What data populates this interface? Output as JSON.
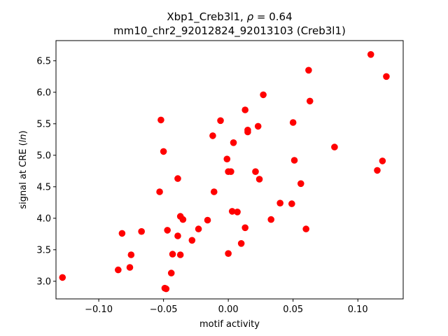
{
  "chart_data": {
    "type": "scatter",
    "title": "Xbp1_Creb3l1, ρ = 0.64",
    "subtitle": "mm10_chr2_92012824_92013103 (Creb3l1)",
    "xlabel": "motif activity",
    "ylabel": "signal at CRE (ln)",
    "xlim": [
      -0.133,
      0.135
    ],
    "ylim": [
      2.72,
      6.82
    ],
    "xticks": [
      -0.1,
      -0.05,
      0.0,
      0.05,
      0.1
    ],
    "xtick_labels": [
      "−0.10",
      "−0.05",
      "0.00",
      "0.05",
      "0.10"
    ],
    "yticks": [
      3.0,
      3.5,
      4.0,
      4.5,
      5.0,
      5.5,
      6.0,
      6.5
    ],
    "ytick_labels": [
      "3.0",
      "3.5",
      "4.0",
      "4.5",
      "5.0",
      "5.5",
      "6.0",
      "6.5"
    ],
    "grid": false,
    "marker_color": "#ff0000",
    "points": [
      {
        "x": -0.128,
        "y": 3.06
      },
      {
        "x": -0.085,
        "y": 3.18
      },
      {
        "x": -0.082,
        "y": 3.76
      },
      {
        "x": -0.076,
        "y": 3.22
      },
      {
        "x": -0.075,
        "y": 3.42
      },
      {
        "x": -0.067,
        "y": 3.79
      },
      {
        "x": -0.053,
        "y": 4.42
      },
      {
        "x": -0.052,
        "y": 5.56
      },
      {
        "x": -0.05,
        "y": 5.06
      },
      {
        "x": -0.049,
        "y": 2.89
      },
      {
        "x": -0.048,
        "y": 2.88
      },
      {
        "x": -0.047,
        "y": 3.81
      },
      {
        "x": -0.044,
        "y": 3.13
      },
      {
        "x": -0.043,
        "y": 3.43
      },
      {
        "x": -0.039,
        "y": 3.72
      },
      {
        "x": -0.039,
        "y": 4.63
      },
      {
        "x": -0.037,
        "y": 3.42
      },
      {
        "x": -0.037,
        "y": 4.03
      },
      {
        "x": -0.035,
        "y": 3.98
      },
      {
        "x": -0.028,
        "y": 3.65
      },
      {
        "x": -0.023,
        "y": 3.83
      },
      {
        "x": -0.016,
        "y": 3.97
      },
      {
        "x": -0.012,
        "y": 5.31
      },
      {
        "x": -0.011,
        "y": 4.42
      },
      {
        "x": -0.006,
        "y": 5.55
      },
      {
        "x": -0.001,
        "y": 4.94
      },
      {
        "x": 0.0,
        "y": 3.44
      },
      {
        "x": 0.0,
        "y": 4.74
      },
      {
        "x": 0.002,
        "y": 4.74
      },
      {
        "x": 0.003,
        "y": 4.11
      },
      {
        "x": 0.004,
        "y": 5.2
      },
      {
        "x": 0.007,
        "y": 4.1
      },
      {
        "x": 0.01,
        "y": 3.6
      },
      {
        "x": 0.013,
        "y": 5.72
      },
      {
        "x": 0.013,
        "y": 3.85
      },
      {
        "x": 0.015,
        "y": 5.4
      },
      {
        "x": 0.015,
        "y": 5.37
      },
      {
        "x": 0.021,
        "y": 4.74
      },
      {
        "x": 0.023,
        "y": 5.46
      },
      {
        "x": 0.024,
        "y": 4.62
      },
      {
        "x": 0.027,
        "y": 5.96
      },
      {
        "x": 0.033,
        "y": 3.98
      },
      {
        "x": 0.04,
        "y": 4.24
      },
      {
        "x": 0.049,
        "y": 4.23
      },
      {
        "x": 0.05,
        "y": 5.52
      },
      {
        "x": 0.051,
        "y": 4.92
      },
      {
        "x": 0.056,
        "y": 4.55
      },
      {
        "x": 0.06,
        "y": 3.83
      },
      {
        "x": 0.062,
        "y": 6.35
      },
      {
        "x": 0.063,
        "y": 5.86
      },
      {
        "x": 0.082,
        "y": 5.13
      },
      {
        "x": 0.11,
        "y": 6.6
      },
      {
        "x": 0.115,
        "y": 4.76
      },
      {
        "x": 0.119,
        "y": 4.91
      },
      {
        "x": 0.122,
        "y": 6.25
      }
    ]
  }
}
